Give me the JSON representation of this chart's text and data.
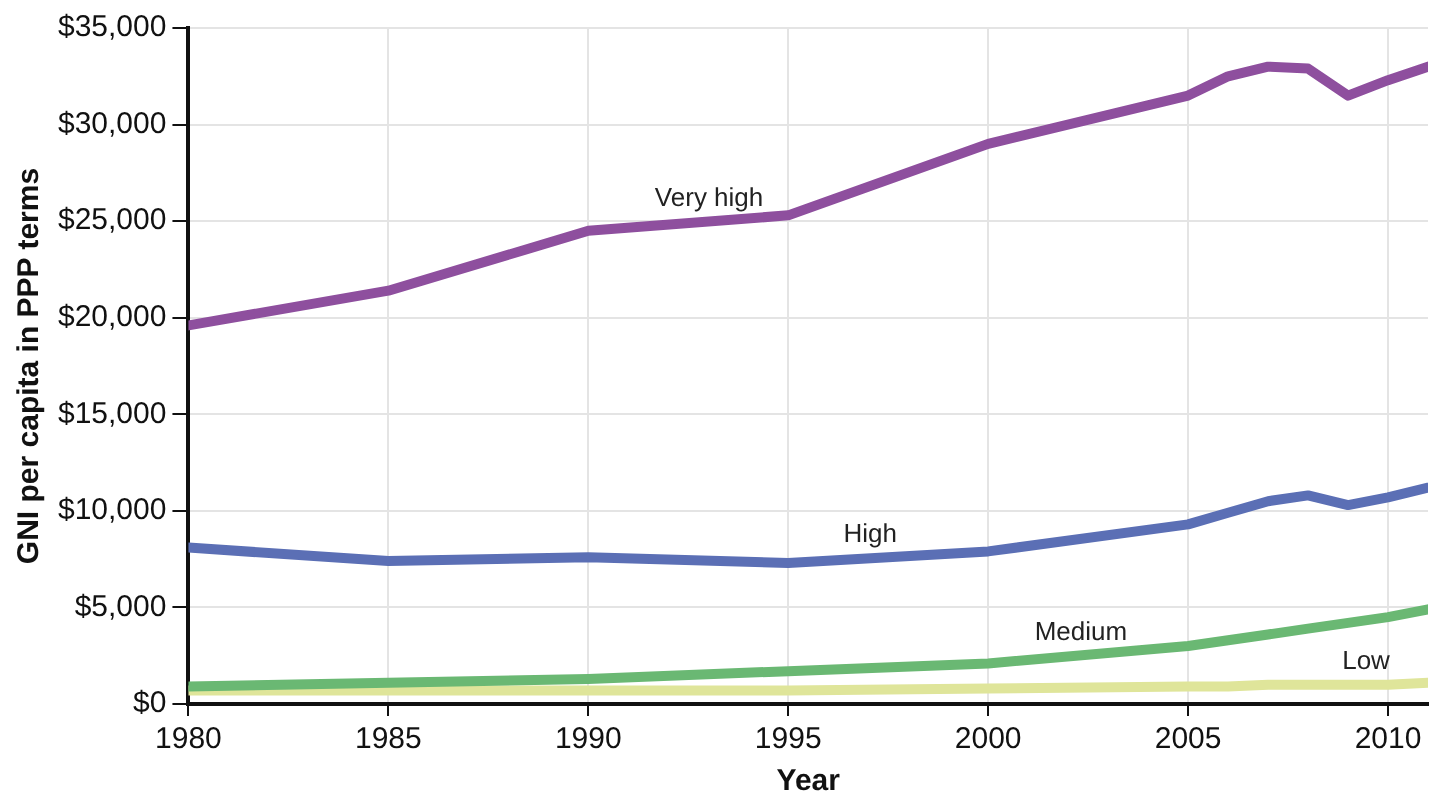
{
  "chart_data": {
    "type": "line",
    "xlabel": "Year",
    "ylabel": "GNI per capita in PPP terms",
    "x": [
      1980,
      1985,
      1990,
      1995,
      2000,
      2005,
      2006,
      2007,
      2008,
      2009,
      2010,
      2011
    ],
    "series": [
      {
        "name": "Very high",
        "color": "#8e4f9e",
        "values": [
          19600,
          21400,
          24500,
          25300,
          29000,
          31500,
          32500,
          33000,
          32900,
          31500,
          32300,
          33000
        ]
      },
      {
        "name": "High",
        "color": "#5b6fb5",
        "values": [
          8100,
          7400,
          7600,
          7300,
          7900,
          9300,
          9900,
          10500,
          10800,
          10300,
          10700,
          11200
        ]
      },
      {
        "name": "Medium",
        "color": "#6ab873",
        "values": [
          900,
          1100,
          1300,
          1700,
          2100,
          3000,
          3300,
          3600,
          3900,
          4200,
          4500,
          4900
        ]
      },
      {
        "name": "Low",
        "color": "#dfe59a",
        "values": [
          700,
          700,
          700,
          700,
          800,
          900,
          900,
          1000,
          1000,
          1000,
          1000,
          1100
        ]
      }
    ],
    "xlim": [
      1980,
      2011
    ],
    "xticks": [
      1980,
      1985,
      1990,
      1995,
      2000,
      2005,
      2010
    ],
    "ylim": [
      0,
      35000
    ],
    "yticks": [
      {
        "value": 0,
        "label": "$0"
      },
      {
        "value": 5000,
        "label": "$5,000"
      },
      {
        "value": 10000,
        "label": "$10,000"
      },
      {
        "value": 15000,
        "label": "$15,000"
      },
      {
        "value": 20000,
        "label": "$20,000"
      },
      {
        "value": 25000,
        "label": "$25,000"
      },
      {
        "value": 30000,
        "label": "$30,000"
      },
      {
        "value": 35000,
        "label": "$35,000"
      }
    ],
    "grid": true,
    "legend": false,
    "marker": "none",
    "line_style": "solid"
  }
}
